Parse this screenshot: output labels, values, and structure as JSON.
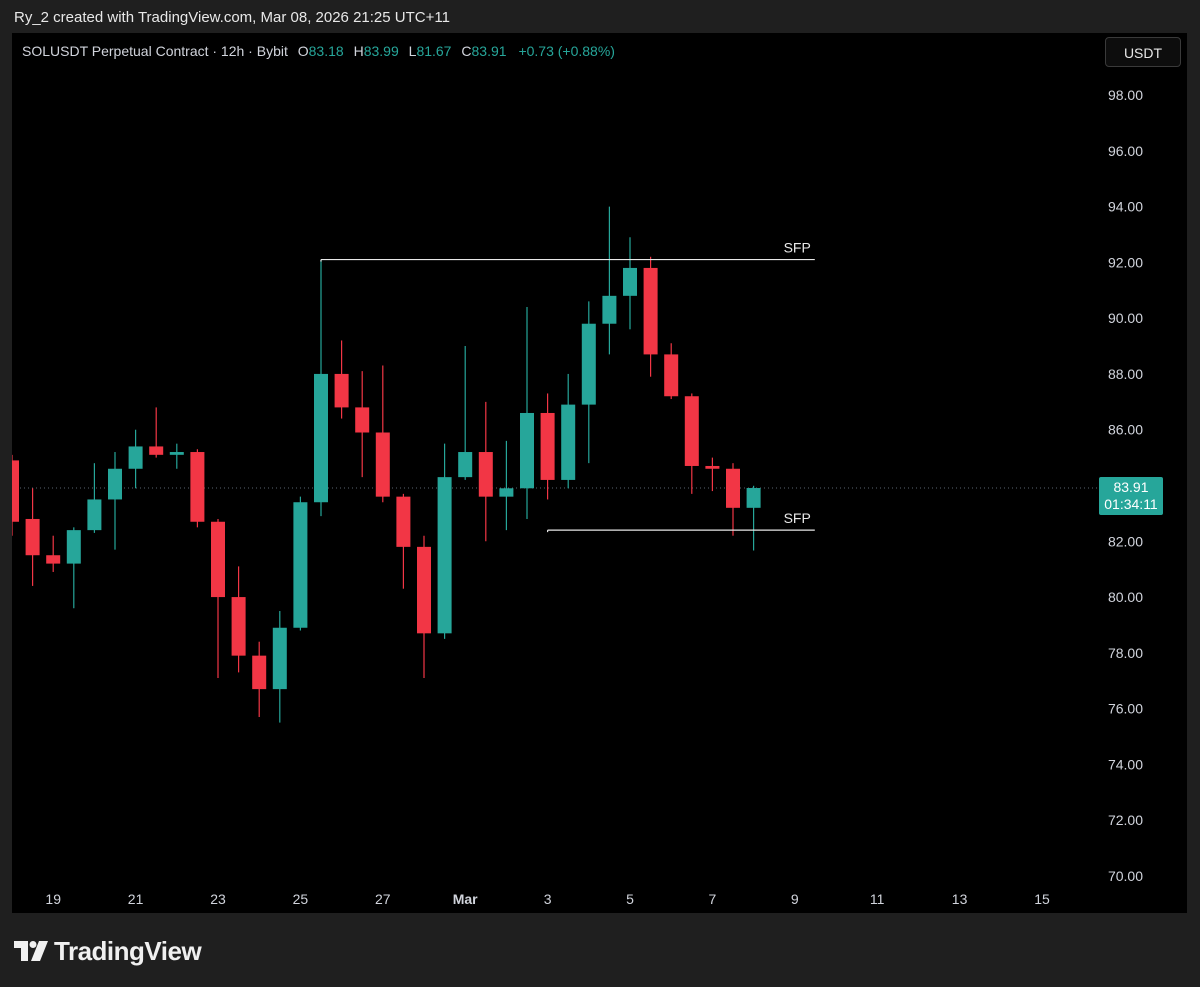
{
  "attribution": "Ry_2 created with TradingView.com, Mar 08, 2026 21:25 UTC+11",
  "legend": {
    "symbol": "SOLUSDT Perpetual Contract · 12h · Bybit",
    "o_label": "O",
    "o_value": "83.18",
    "h_label": "H",
    "h_value": "83.99",
    "l_label": "L",
    "l_value": "81.67",
    "c_label": "C",
    "c_value": "83.91",
    "change": "+0.73 (+0.88%)"
  },
  "currency": "USDT",
  "last_price": {
    "price": "83.91",
    "countdown": "01:34:11"
  },
  "logo_text": "TradingView",
  "colors": {
    "up": "#26a69a",
    "down": "#f23645",
    "background": "#000000",
    "frame": "#1f1f1f",
    "text": "#d1d4dc"
  },
  "chart_data": {
    "type": "candlestick",
    "ylim": [
      70,
      99
    ],
    "y_ticks": [
      "98.00",
      "96.00",
      "94.00",
      "92.00",
      "90.00",
      "88.00",
      "86.00",
      "84.00",
      "82.00",
      "80.00",
      "78.00",
      "76.00",
      "74.00",
      "72.00",
      "70.00"
    ],
    "x_ticks": [
      "19",
      "21",
      "23",
      "25",
      "27",
      "Mar",
      "3",
      "5",
      "7",
      "9",
      "11",
      "13",
      "15"
    ],
    "candles": [
      {
        "o": 84.9,
        "h": 85.1,
        "l": 82.2,
        "c": 82.7
      },
      {
        "o": 82.8,
        "h": 83.9,
        "l": 80.4,
        "c": 81.5
      },
      {
        "o": 81.5,
        "h": 82.2,
        "l": 80.9,
        "c": 81.2
      },
      {
        "o": 81.2,
        "h": 82.5,
        "l": 79.6,
        "c": 82.4
      },
      {
        "o": 82.4,
        "h": 84.8,
        "l": 82.3,
        "c": 83.5
      },
      {
        "o": 83.5,
        "h": 85.2,
        "l": 81.7,
        "c": 84.6
      },
      {
        "o": 84.6,
        "h": 86.0,
        "l": 83.9,
        "c": 85.4
      },
      {
        "o": 85.4,
        "h": 86.8,
        "l": 85.0,
        "c": 85.1
      },
      {
        "o": 85.1,
        "h": 85.5,
        "l": 84.6,
        "c": 85.2
      },
      {
        "o": 85.2,
        "h": 85.3,
        "l": 82.5,
        "c": 82.7
      },
      {
        "o": 82.7,
        "h": 82.8,
        "l": 77.1,
        "c": 80.0
      },
      {
        "o": 80.0,
        "h": 81.1,
        "l": 77.3,
        "c": 77.9
      },
      {
        "o": 77.9,
        "h": 78.4,
        "l": 75.7,
        "c": 76.7
      },
      {
        "o": 76.7,
        "h": 79.5,
        "l": 75.5,
        "c": 78.9
      },
      {
        "o": 78.9,
        "h": 83.6,
        "l": 78.8,
        "c": 83.4
      },
      {
        "o": 83.4,
        "h": 92.1,
        "l": 82.9,
        "c": 88.0
      },
      {
        "o": 88.0,
        "h": 89.2,
        "l": 86.4,
        "c": 86.8
      },
      {
        "o": 86.8,
        "h": 88.1,
        "l": 84.3,
        "c": 85.9
      },
      {
        "o": 85.9,
        "h": 88.3,
        "l": 83.4,
        "c": 83.6
      },
      {
        "o": 83.6,
        "h": 83.7,
        "l": 80.3,
        "c": 81.8
      },
      {
        "o": 81.8,
        "h": 82.2,
        "l": 77.1,
        "c": 78.7
      },
      {
        "o": 78.7,
        "h": 85.5,
        "l": 78.5,
        "c": 84.3
      },
      {
        "o": 84.3,
        "h": 89.0,
        "l": 84.2,
        "c": 85.2
      },
      {
        "o": 85.2,
        "h": 87.0,
        "l": 82.0,
        "c": 83.6
      },
      {
        "o": 83.6,
        "h": 85.6,
        "l": 82.4,
        "c": 83.9
      },
      {
        "o": 83.9,
        "h": 90.4,
        "l": 82.8,
        "c": 86.6
      },
      {
        "o": 86.6,
        "h": 87.3,
        "l": 83.5,
        "c": 84.2
      },
      {
        "o": 84.2,
        "h": 88.0,
        "l": 83.9,
        "c": 86.9
      },
      {
        "o": 86.9,
        "h": 90.6,
        "l": 84.8,
        "c": 89.8
      },
      {
        "o": 89.8,
        "h": 94.0,
        "l": 88.7,
        "c": 90.8
      },
      {
        "o": 90.8,
        "h": 92.9,
        "l": 89.6,
        "c": 91.8
      },
      {
        "o": 91.8,
        "h": 92.2,
        "l": 87.9,
        "c": 88.7
      },
      {
        "o": 88.7,
        "h": 89.1,
        "l": 87.1,
        "c": 87.2
      },
      {
        "o": 87.2,
        "h": 87.3,
        "l": 83.7,
        "c": 84.7
      },
      {
        "o": 84.7,
        "h": 85.0,
        "l": 83.8,
        "c": 84.6
      },
      {
        "o": 84.6,
        "h": 84.8,
        "l": 82.2,
        "c": 83.2
      },
      {
        "o": 83.2,
        "h": 83.99,
        "l": 81.67,
        "c": 83.91
      }
    ],
    "last_price": 83.91,
    "annotations": [
      {
        "label": "SFP",
        "price": 92.1,
        "from_candle": 15,
        "to_x": "9"
      },
      {
        "label": "SFP",
        "price": 82.4,
        "from_candle": 26,
        "to_x": "9"
      }
    ]
  }
}
